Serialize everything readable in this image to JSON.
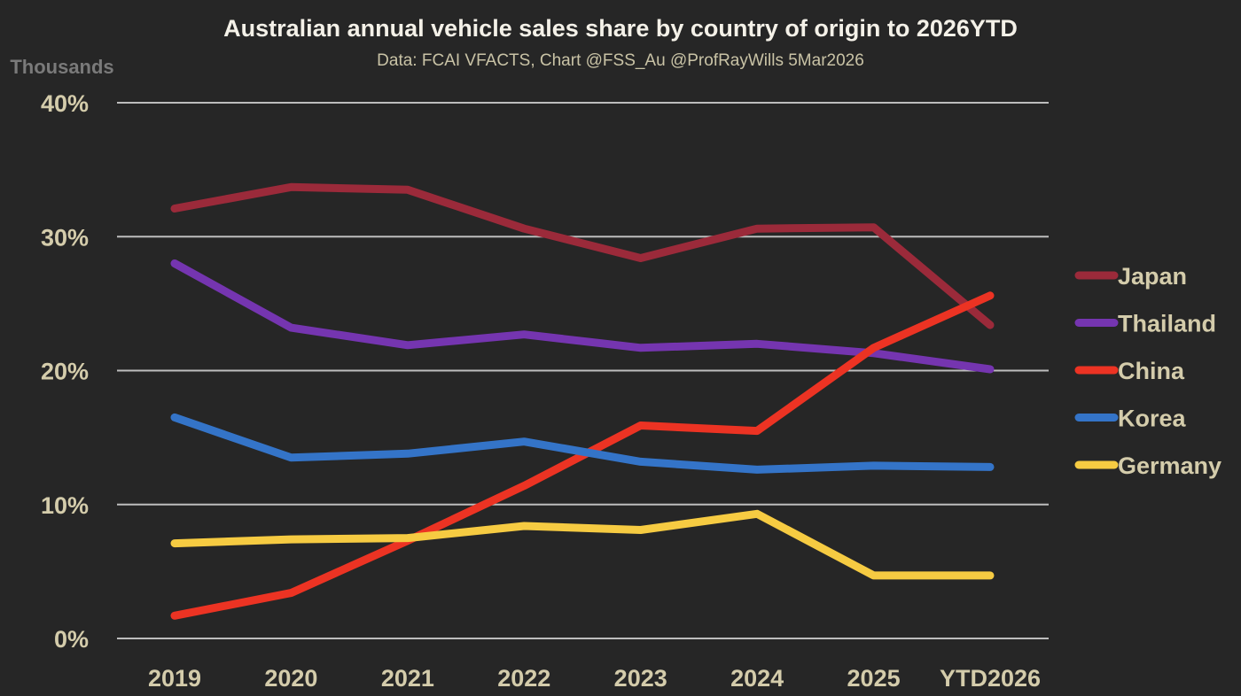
{
  "chart_data": {
    "type": "line",
    "title": "Australian annual vehicle sales share by country of origin to 2026YTD",
    "subtitle": "Data: FCAI VFACTS, Chart @FSS_Au @ProfRayWills 5Mar2026",
    "unit_label": "Thousands",
    "xlabel": "",
    "ylabel": "",
    "categories": [
      "2019",
      "2020",
      "2021",
      "2022",
      "2023",
      "2024",
      "2025",
      "YTD2026"
    ],
    "ylim": [
      0,
      40
    ],
    "yticks": [
      0,
      10,
      20,
      30,
      40
    ],
    "ytick_labels": [
      "0%",
      "10%",
      "20%",
      "30%",
      "40%"
    ],
    "grid": true,
    "legend_position": "right",
    "series": [
      {
        "name": "Japan",
        "color": "#9b2a3a",
        "values": [
          32.1,
          33.7,
          33.5,
          30.6,
          28.4,
          30.6,
          30.7,
          23.4
        ]
      },
      {
        "name": "Thailand",
        "color": "#7535b0",
        "values": [
          28.0,
          23.2,
          21.9,
          22.7,
          21.7,
          22.0,
          21.3,
          20.1
        ]
      },
      {
        "name": "China",
        "color": "#ec3323",
        "values": [
          1.7,
          3.4,
          7.3,
          11.4,
          15.9,
          15.5,
          21.7,
          25.6
        ]
      },
      {
        "name": "Korea",
        "color": "#3474c8",
        "values": [
          16.5,
          13.5,
          13.8,
          14.7,
          13.2,
          12.6,
          12.9,
          12.8
        ]
      },
      {
        "name": "Germany",
        "color": "#f6cb42",
        "values": [
          7.1,
          7.4,
          7.5,
          8.4,
          8.1,
          9.3,
          4.7,
          4.7
        ]
      }
    ]
  }
}
